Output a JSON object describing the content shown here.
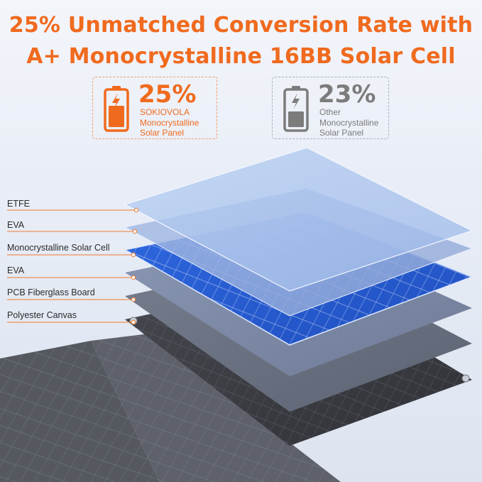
{
  "headline": {
    "line1": "25% Unmatched Conversion Rate with",
    "line2": "A+ Monocrystalline 16BB Solar Cell"
  },
  "comparison": {
    "ours": {
      "percent": "25%",
      "line1": "SOKIOVOLA",
      "line2": "Monocrystalline",
      "line3": "Solar Panel",
      "icon": "battery-charging-icon",
      "color": "#f06a1e",
      "charge_level": 0.7
    },
    "other": {
      "percent": "23%",
      "line1": "Other",
      "line2": "Monocrystalline",
      "line3": "Solar Panel",
      "icon": "battery-charging-icon",
      "color": "#7c7c7c",
      "charge_level": 0.55
    }
  },
  "layers": [
    {
      "label": "ETFE",
      "color": "#a9c3ec"
    },
    {
      "label": "EVA",
      "color": "#9fb4de"
    },
    {
      "label": "Monocrystalline Solar Cell",
      "color": "#2b5fd6"
    },
    {
      "label": "EVA",
      "color": "#7d8aa6"
    },
    {
      "label": "PCB Fiberglass Board",
      "color": "#6d7585"
    },
    {
      "label": "Polyester Canvas",
      "color": "#3d3f45"
    }
  ]
}
